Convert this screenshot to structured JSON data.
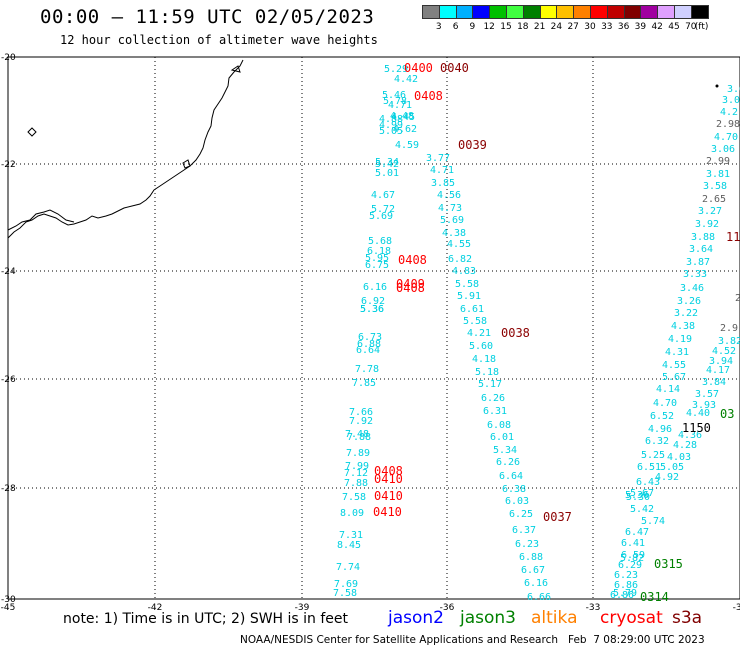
{
  "header": {
    "title": "00:00 – 11:59 UTC 02/05/2023",
    "subtitle": "12 hour collection of altimeter wave heights"
  },
  "colorbar": {
    "colors": [
      "#808080",
      "#00ffff",
      "#00b0ff",
      "#0000ff",
      "#00c000",
      "#40ff40",
      "#008000",
      "#ffff00",
      "#ffc000",
      "#ff8000",
      "#ff0000",
      "#c00000",
      "#800000",
      "#a000a0",
      "#e0a0ff",
      "#d0d0ff",
      "#000000"
    ],
    "labels": [
      "3",
      "6",
      "9",
      "12",
      "15",
      "18",
      "21",
      "24",
      "27",
      "30",
      "33",
      "36",
      "39",
      "42",
      "45",
      "70"
    ],
    "unit": "(ft)"
  },
  "axes": {
    "lat_labels": [
      "-20",
      "-22",
      "-24",
      "-26",
      "-28",
      "-30"
    ],
    "lon_labels": [
      "-45",
      "-42",
      "-39",
      "-36",
      "-33",
      "-30"
    ]
  },
  "tracks": {
    "track_a": [
      "5.29",
      "4.42",
      "5.46",
      "5.78",
      "4.71",
      "4.88",
      "4.45",
      "4.99",
      "4.48",
      "4.62",
      "5.05",
      "4.59",
      "5.34",
      "5.42",
      "5.01",
      "4.67",
      "5.72",
      "5.69",
      "5.68",
      "6.18",
      "5.95",
      "6.75",
      "6.16",
      "5.36",
      "6.92",
      "5.36",
      "6.73",
      "6.88",
      "6.64",
      "7.78",
      "7.85",
      "7.66",
      "7.92",
      "7.48",
      "7.88",
      "7.89",
      "7.99",
      "7.12",
      "7.88",
      "7.58",
      "8.09",
      "7.31",
      "8.45",
      "7.74",
      "7.69",
      "7.58"
    ],
    "track_b": [
      "3.77",
      "4.71",
      "3.85",
      "4.56",
      "4.73",
      "5.69",
      "4.38",
      "4.55",
      "6.82",
      "4.83",
      "5.58",
      "5.91",
      "6.61",
      "5.58",
      "4.21",
      "5.60",
      "4.18",
      "5.18",
      "5.17",
      "6.26",
      "6.31",
      "6.08",
      "6.01",
      "5.34",
      "6.26",
      "6.64",
      "6.38",
      "6.03",
      "6.25",
      "6.37",
      "6.23",
      "6.88",
      "6.67",
      "6.16",
      "6.66"
    ],
    "track_c": [
      "3.6",
      "3.0",
      "4.2",
      "2.98",
      "4.70",
      "3.06",
      "2.99",
      "3.81",
      "3.58",
      "2.65",
      "3.27",
      "3.92",
      "3.88",
      "3.64",
      "3.87",
      "3.33",
      "3.46",
      "3.26",
      "3.22",
      "4.38",
      "4.19",
      "4.31",
      "4.55",
      "5.67",
      "4.14",
      "4.70",
      "4.40",
      "6.52",
      "4.36",
      "4.96",
      "6.32",
      "4.28",
      "5.25",
      "4.03",
      "6.51",
      "5.05",
      "6.43",
      "4.92",
      "5.67",
      "5.30",
      "5.36",
      "5.42",
      "5.74",
      "6.47",
      "6.41",
      "6.59",
      "5.82",
      "6.29",
      "6.23",
      "6.86",
      "5.79",
      "6.86"
    ],
    "track_d": [
      "2.9",
      "2.9",
      "3.82",
      "4.52",
      "3.94",
      "4.17",
      "3.84",
      "3.57",
      "3.93"
    ]
  },
  "time_labels": {
    "red": [
      "0400",
      "0408",
      "0408",
      "0409",
      "0408",
      "0408",
      "0410",
      "0410",
      "0410"
    ],
    "dark_red": [
      "0040",
      "0039",
      "0038",
      "0037",
      "1150",
      "11"
    ],
    "green": [
      "0315",
      "0314",
      "03"
    ]
  },
  "footer": {
    "note": "note: 1) Time is in UTC; 2) SWH is in feet",
    "legend": [
      {
        "name": "jason2",
        "color": "#0000ff"
      },
      {
        "name": "jason3",
        "color": "#008000"
      },
      {
        "name": "altika",
        "color": "#ff8000"
      },
      {
        "name": "cryosat",
        "color": "#ff0000"
      },
      {
        "name": "s3a",
        "color": "#800000"
      }
    ],
    "credit": "NOAA/NESDIS Center for Satellite Applications and Research   Feb  7 08:29:00 UTC 2023"
  }
}
